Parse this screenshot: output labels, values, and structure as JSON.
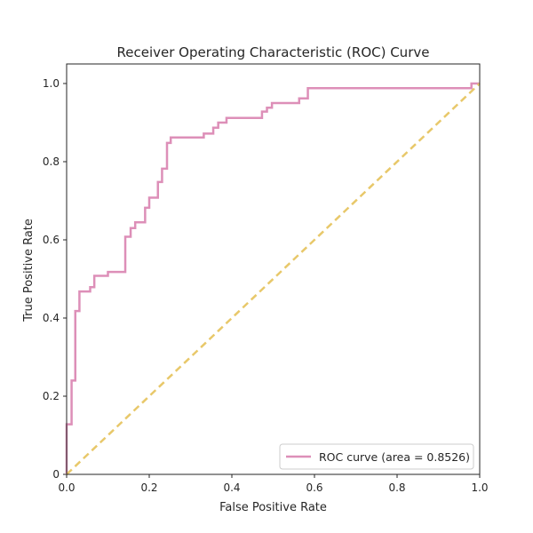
{
  "chart_data": {
    "type": "line",
    "title": "Receiver Operating Characteristic (ROC) Curve",
    "xlabel": "False Positive Rate",
    "ylabel": "True Positive Rate",
    "xlim": [
      0,
      1
    ],
    "ylim": [
      0,
      1.05
    ],
    "xticks": [
      0,
      0.2,
      0.4,
      0.6,
      0.8,
      1.0
    ],
    "xtick_labels": [
      "0.0",
      "0.2",
      "0.4",
      "0.6",
      "0.8",
      "1.0"
    ],
    "yticks": [
      0,
      0.2,
      0.4,
      0.6,
      0.8,
      1.0
    ],
    "ytick_labels": [
      "0",
      "0.2",
      "0.4",
      "0.6",
      "0.8",
      "1.0"
    ],
    "grid": false,
    "legend_position": "bottom-right",
    "series": [
      {
        "name": "ROC curve (area = 0.8526)",
        "color": "#dd8fb8",
        "style": "solid",
        "x": [
          0.0,
          0.0,
          0.012,
          0.012,
          0.021,
          0.021,
          0.031,
          0.031,
          0.057,
          0.057,
          0.067,
          0.067,
          0.1,
          0.1,
          0.142,
          0.142,
          0.155,
          0.155,
          0.166,
          0.166,
          0.19,
          0.19,
          0.2,
          0.2,
          0.221,
          0.221,
          0.231,
          0.231,
          0.243,
          0.243,
          0.252,
          0.252,
          0.332,
          0.332,
          0.355,
          0.355,
          0.367,
          0.367,
          0.387,
          0.387,
          0.473,
          0.473,
          0.485,
          0.485,
          0.497,
          0.497,
          0.563,
          0.563,
          0.584,
          0.584,
          0.98,
          0.98,
          1.0
        ],
        "y": [
          0.0,
          0.128,
          0.128,
          0.24,
          0.24,
          0.418,
          0.418,
          0.468,
          0.468,
          0.479,
          0.479,
          0.508,
          0.508,
          0.518,
          0.518,
          0.608,
          0.608,
          0.63,
          0.63,
          0.645,
          0.645,
          0.682,
          0.682,
          0.708,
          0.708,
          0.748,
          0.748,
          0.782,
          0.782,
          0.848,
          0.848,
          0.862,
          0.862,
          0.872,
          0.872,
          0.887,
          0.887,
          0.9,
          0.9,
          0.912,
          0.912,
          0.928,
          0.928,
          0.938,
          0.938,
          0.95,
          0.95,
          0.962,
          0.962,
          0.988,
          0.988,
          1.0,
          1.0
        ]
      },
      {
        "name": "",
        "color": "#e8c86a",
        "style": "dashed",
        "x": [
          0,
          1
        ],
        "y": [
          0,
          1
        ]
      }
    ]
  }
}
